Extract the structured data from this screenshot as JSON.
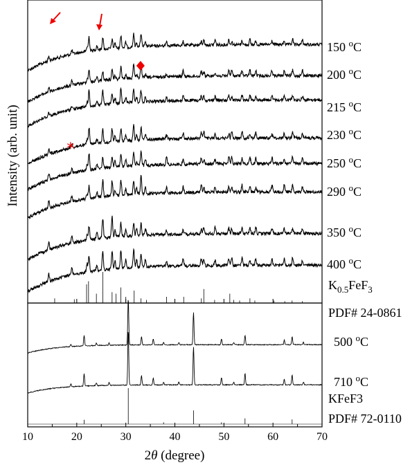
{
  "chart_data": {
    "type": "line",
    "xlabel_prefix": "2",
    "xlabel_symbol": "θ",
    "xlabel_suffix": " (degree)",
    "ylabel": "Intensity (arb. unit)",
    "xlim": [
      10,
      70
    ],
    "xticks": [
      "10",
      "20",
      "30",
      "40",
      "50",
      "60",
      "70"
    ],
    "grid": false,
    "legend": "none",
    "upper_panel": {
      "series": [
        {
          "name": "150 oC",
          "temp": "150",
          "unit": "C"
        },
        {
          "name": "200 oC",
          "temp": "200",
          "unit": "C"
        },
        {
          "name": "215 oC",
          "temp": "215",
          "unit": "C"
        },
        {
          "name": "230 oC",
          "temp": "230",
          "unit": "C"
        },
        {
          "name": "250 oC",
          "temp": "250",
          "unit": "C"
        },
        {
          "name": "290 oC",
          "temp": "290",
          "unit": "C"
        },
        {
          "name": "350 oC",
          "temp": "350",
          "unit": "C"
        },
        {
          "name": "400 oC",
          "temp": "400",
          "unit": "C"
        }
      ],
      "peaks_2theta": [
        14.3,
        19.0,
        22.1,
        22.5,
        24.1,
        25.3,
        27.2,
        27.8,
        29.0,
        30.0,
        31.6,
        32.2,
        33.1,
        34.0,
        38.3,
        41.7,
        45.4,
        45.9,
        48.2,
        51.0,
        51.6,
        53.7,
        55.3,
        56.5,
        59.8,
        62.3,
        64.0,
        66.0
      ],
      "reference": {
        "label_main": "K",
        "label_sub": "0.5",
        "label_rest": "FeF",
        "label_sub2": "3",
        "pdf": "PDF# 24-0861",
        "sticks": [
          {
            "x": 15.5,
            "h": 0.15
          },
          {
            "x": 19.5,
            "h": 0.12
          },
          {
            "x": 22.0,
            "h": 0.6
          },
          {
            "x": 22.4,
            "h": 0.7
          },
          {
            "x": 24.0,
            "h": 0.3
          },
          {
            "x": 25.3,
            "h": 1.0
          },
          {
            "x": 27.2,
            "h": 0.35
          },
          {
            "x": 28.0,
            "h": 0.3
          },
          {
            "x": 29.0,
            "h": 0.5
          },
          {
            "x": 30.0,
            "h": 0.2
          },
          {
            "x": 31.7,
            "h": 0.4
          },
          {
            "x": 33.1,
            "h": 0.15
          },
          {
            "x": 34.2,
            "h": 0.1
          },
          {
            "x": 38.3,
            "h": 0.2
          },
          {
            "x": 41.8,
            "h": 0.2
          },
          {
            "x": 45.4,
            "h": 0.15
          },
          {
            "x": 45.9,
            "h": 0.45
          },
          {
            "x": 48.1,
            "h": 0.1
          },
          {
            "x": 51.2,
            "h": 0.3
          },
          {
            "x": 52.0,
            "h": 0.1
          },
          {
            "x": 53.2,
            "h": 0.08
          },
          {
            "x": 55.3,
            "h": 0.15
          },
          {
            "x": 56.3,
            "h": 0.08
          },
          {
            "x": 60.2,
            "h": 0.08
          },
          {
            "x": 62.4,
            "h": 0.06
          },
          {
            "x": 63.9,
            "h": 0.08
          },
          {
            "x": 66.0,
            "h": 0.06
          }
        ]
      },
      "annotations": {
        "arrows_2theta": [
          14.5,
          24.0
        ],
        "diamond_2theta": 33.0,
        "star_2theta": 19.0
      }
    },
    "lower_panel": {
      "series": [
        {
          "name": "500 oC",
          "temp": "500",
          "unit": "C"
        },
        {
          "name": "710 oC",
          "temp": "710",
          "unit": "C"
        }
      ],
      "peaks_2theta": [
        18.8,
        21.5,
        24.0,
        26.6,
        30.5,
        33.2,
        35.6,
        37.7,
        40.8,
        43.8,
        49.5,
        52.0,
        54.3,
        62.3,
        63.9,
        66.2
      ],
      "reference": {
        "label": "KFeF3",
        "pdf": "PDF# 72-0110",
        "sticks": [
          {
            "x": 21.5,
            "h": 0.12
          },
          {
            "x": 30.5,
            "h": 1.0
          },
          {
            "x": 37.7,
            "h": 0.05
          },
          {
            "x": 43.8,
            "h": 0.38
          },
          {
            "x": 49.5,
            "h": 0.05
          },
          {
            "x": 54.3,
            "h": 0.16
          },
          {
            "x": 63.9,
            "h": 0.13
          }
        ]
      }
    }
  }
}
